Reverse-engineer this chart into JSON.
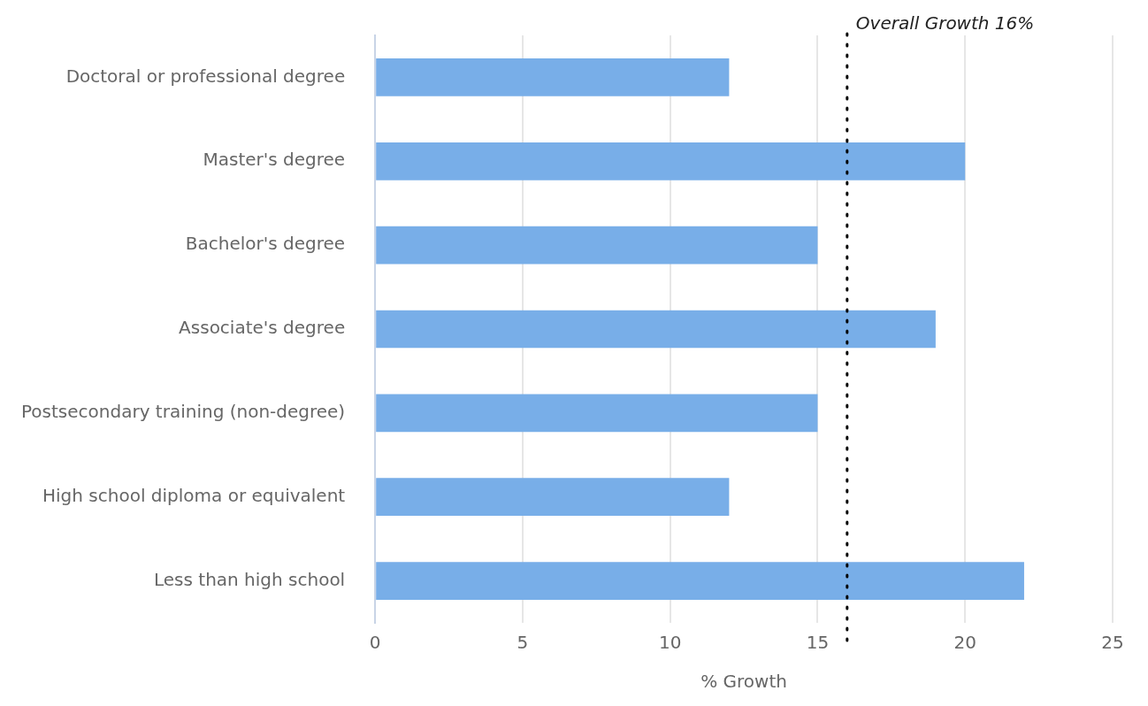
{
  "chart_data": {
    "type": "bar",
    "orientation": "horizontal",
    "xlabel": "% Growth",
    "categories": [
      "Doctoral or professional degree",
      "Master's degree",
      "Bachelor's degree",
      "Associate's degree",
      "Postsecondary training (non-degree)",
      "High school diploma or equivalent",
      "Less than high school"
    ],
    "values": [
      12,
      20,
      15,
      19,
      15,
      12,
      22
    ],
    "color": "#78aee8",
    "xlim": [
      0,
      25
    ],
    "xticks": [
      0,
      5,
      10,
      15,
      20,
      25
    ],
    "grid": "x",
    "legend": false,
    "ref_lines": [
      {
        "axis": "x",
        "value": 16,
        "label": "Overall Growth 16%",
        "color": "#000000",
        "line_style": "dotted"
      }
    ]
  }
}
